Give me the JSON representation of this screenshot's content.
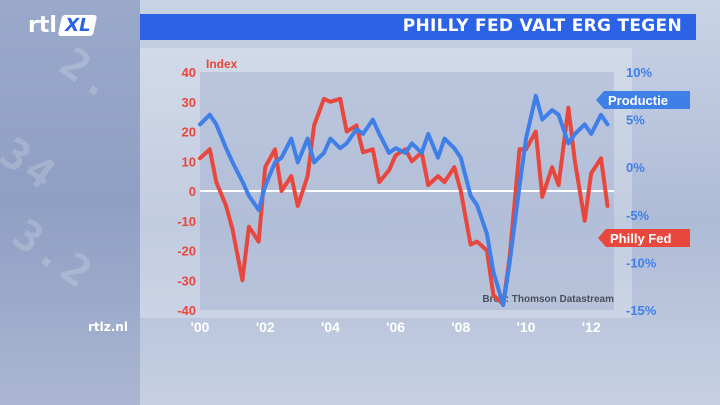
{
  "header": {
    "title": "PHILLY FED VALT ERG TEGEN",
    "logo_text": "rtl",
    "logo_badge": "XL"
  },
  "footer": {
    "site": "rtlz.nl"
  },
  "colors": {
    "philly_fed": "#e8473d",
    "productie": "#3f7fe8",
    "title_bar": "#2b62e6"
  },
  "chart_data": {
    "type": "line",
    "ylabel_left": "Index",
    "source": "Bron: Thomson Datastream",
    "x_ticks": [
      "'00",
      "'02",
      "'04",
      "'06",
      "'08",
      "'10",
      "'12"
    ],
    "x_tick_values": [
      2000,
      2002,
      2004,
      2006,
      2008,
      2010,
      2012
    ],
    "xlim": [
      2000,
      2012.7
    ],
    "y_left": {
      "ticks": [
        "40",
        "30",
        "20",
        "10",
        "0",
        "-10",
        "-20",
        "-30",
        "-40"
      ],
      "range": [
        -40,
        40
      ]
    },
    "y_right": {
      "ticks": [
        "10%",
        "5%",
        "0%",
        "-5%",
        "-10%",
        "-15%"
      ],
      "range": [
        -15,
        10
      ]
    },
    "series": [
      {
        "name": "Philly Fed",
        "axis": "left",
        "x": [
          2000.0,
          2000.3,
          2000.5,
          2000.8,
          2001.0,
          2001.3,
          2001.5,
          2001.8,
          2002.0,
          2002.3,
          2002.5,
          2002.8,
          2003.0,
          2003.3,
          2003.5,
          2003.8,
          2004.0,
          2004.3,
          2004.5,
          2004.8,
          2005.0,
          2005.3,
          2005.5,
          2005.8,
          2006.0,
          2006.3,
          2006.5,
          2006.8,
          2007.0,
          2007.3,
          2007.5,
          2007.8,
          2008.0,
          2008.3,
          2008.5,
          2008.8,
          2009.0,
          2009.3,
          2009.5,
          2009.8,
          2010.0,
          2010.3,
          2010.5,
          2010.8,
          2011.0,
          2011.3,
          2011.5,
          2011.8,
          2012.0,
          2012.3,
          2012.5
        ],
        "values": [
          11,
          14,
          3,
          -5,
          -13,
          -30,
          -12,
          -17,
          8,
          14,
          0,
          5,
          -5,
          5,
          22,
          31,
          30,
          31,
          20,
          22,
          13,
          14,
          3,
          7,
          12,
          14,
          10,
          13,
          2,
          5,
          3,
          8,
          0,
          -18,
          -17,
          -20,
          -35,
          -38,
          -22,
          14,
          14,
          20,
          -2,
          8,
          2,
          28,
          10,
          -10,
          6,
          11,
          -5
        ]
      },
      {
        "name": "Productie",
        "axis": "right",
        "x": [
          2000.0,
          2000.3,
          2000.5,
          2000.8,
          2001.0,
          2001.3,
          2001.5,
          2001.8,
          2002.0,
          2002.3,
          2002.5,
          2002.8,
          2003.0,
          2003.3,
          2003.5,
          2003.8,
          2004.0,
          2004.3,
          2004.5,
          2004.8,
          2005.0,
          2005.3,
          2005.5,
          2005.8,
          2006.0,
          2006.3,
          2006.5,
          2006.8,
          2007.0,
          2007.3,
          2007.5,
          2007.8,
          2008.0,
          2008.3,
          2008.5,
          2008.8,
          2009.0,
          2009.3,
          2009.5,
          2009.8,
          2010.0,
          2010.3,
          2010.5,
          2010.8,
          2011.0,
          2011.3,
          2011.5,
          2011.8,
          2012.0,
          2012.3,
          2012.5
        ],
        "values": [
          4.5,
          5.5,
          4.5,
          2.0,
          0.5,
          -1.5,
          -3.0,
          -4.5,
          -2.0,
          0.5,
          1.0,
          3.0,
          0.5,
          3.0,
          0.5,
          1.5,
          3.0,
          2.0,
          2.5,
          4.0,
          3.5,
          5.0,
          3.5,
          1.5,
          2.0,
          1.5,
          2.5,
          1.5,
          3.5,
          1.0,
          3.0,
          2.0,
          1.0,
          -3.0,
          -4.0,
          -7.0,
          -11.0,
          -14.5,
          -10.0,
          -2.0,
          3.0,
          7.5,
          5.0,
          6.0,
          5.5,
          2.5,
          3.5,
          4.5,
          3.5,
          5.5,
          4.5
        ]
      }
    ],
    "labels": {
      "productie": "Productie",
      "philly_fed": "Philly Fed"
    }
  }
}
